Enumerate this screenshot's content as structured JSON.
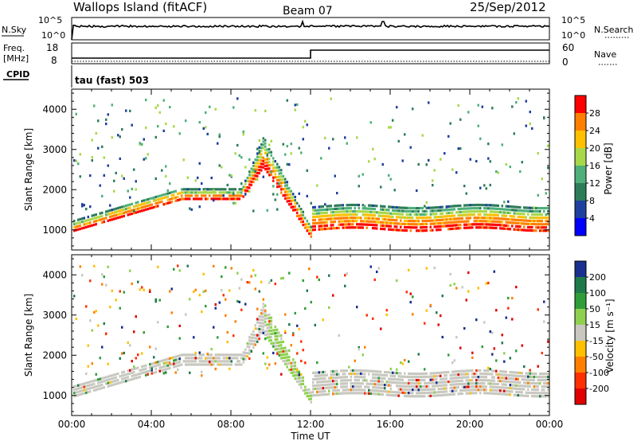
{
  "header": {
    "site": "Wallops Island (fitACF)",
    "beam": "Beam 07",
    "date": "25/Sep/2012"
  },
  "top_panel": {
    "nsky_label": "N.Sky",
    "nsearch_label": "N.Search",
    "nsky_ticks": [
      "10^5",
      "10^0"
    ],
    "nsearch_ticks": [
      "10^5",
      "10^0"
    ]
  },
  "freq_panel": {
    "freq_label": "Freq.",
    "freq_unit": "[MHz]",
    "freq_ticks": [
      "18",
      "8"
    ],
    "nave_label": "Nave",
    "nave_ticks": [
      "60",
      "0"
    ],
    "cpid_label": "CPID",
    "cpid_text": "tau (fast) 503"
  },
  "chart_data": [
    {
      "type": "heatmap",
      "panel": "power",
      "ylabel": "Slant Range [km]",
      "yticks": [
        "4000",
        "3000",
        "2000",
        "1000"
      ],
      "ylim": [
        500,
        4500
      ],
      "colorbar_label": "Power [dB]",
      "colorbar_ticks": [
        "28",
        "24",
        "20",
        "16",
        "12",
        "8",
        "4"
      ],
      "colorbar_colors": [
        "#ff0000",
        "#ff7f00",
        "#ffc000",
        "#a8d84a",
        "#4fb07a",
        "#2e7d5a",
        "#2040a0",
        "#0000ff"
      ],
      "features": [
        {
          "name": "main echo band 00-08 UT",
          "x": [
            0,
            8.5
          ],
          "y": [
            1000,
            2050
          ]
        },
        {
          "name": "rising trace 08-09.5 UT",
          "x": [
            8.5,
            9.6
          ],
          "y": [
            2000,
            3300
          ]
        },
        {
          "name": "descending trace 09.5-12 UT",
          "x": [
            9.6,
            12
          ],
          "y": [
            3300,
            900
          ]
        },
        {
          "name": "flat band 12-24 UT",
          "x": [
            12,
            24
          ],
          "y": [
            1100,
            1700
          ]
        }
      ]
    },
    {
      "type": "heatmap",
      "panel": "velocity",
      "ylabel": "Slant Range [km]",
      "yticks": [
        "4000",
        "3000",
        "2000",
        "1000"
      ],
      "ylim": [
        500,
        4500
      ],
      "colorbar_label": "Velocity [m s⁻¹]",
      "colorbar_ticks": [
        "200",
        "100",
        "50",
        "15",
        "-15",
        "-50",
        "-100",
        "-200"
      ],
      "colorbar_colors": [
        "#1a2f8f",
        "#1e7a4a",
        "#2f9e3a",
        "#8fd14f",
        "#c8c8c0",
        "#ffc000",
        "#ff8000",
        "#ff3000",
        "#e00000"
      ]
    }
  ],
  "xaxis": {
    "ticks": [
      "00:00",
      "04:00",
      "08:00",
      "12:00",
      "16:00",
      "20:00",
      "00:00"
    ],
    "label": "Time UT"
  }
}
